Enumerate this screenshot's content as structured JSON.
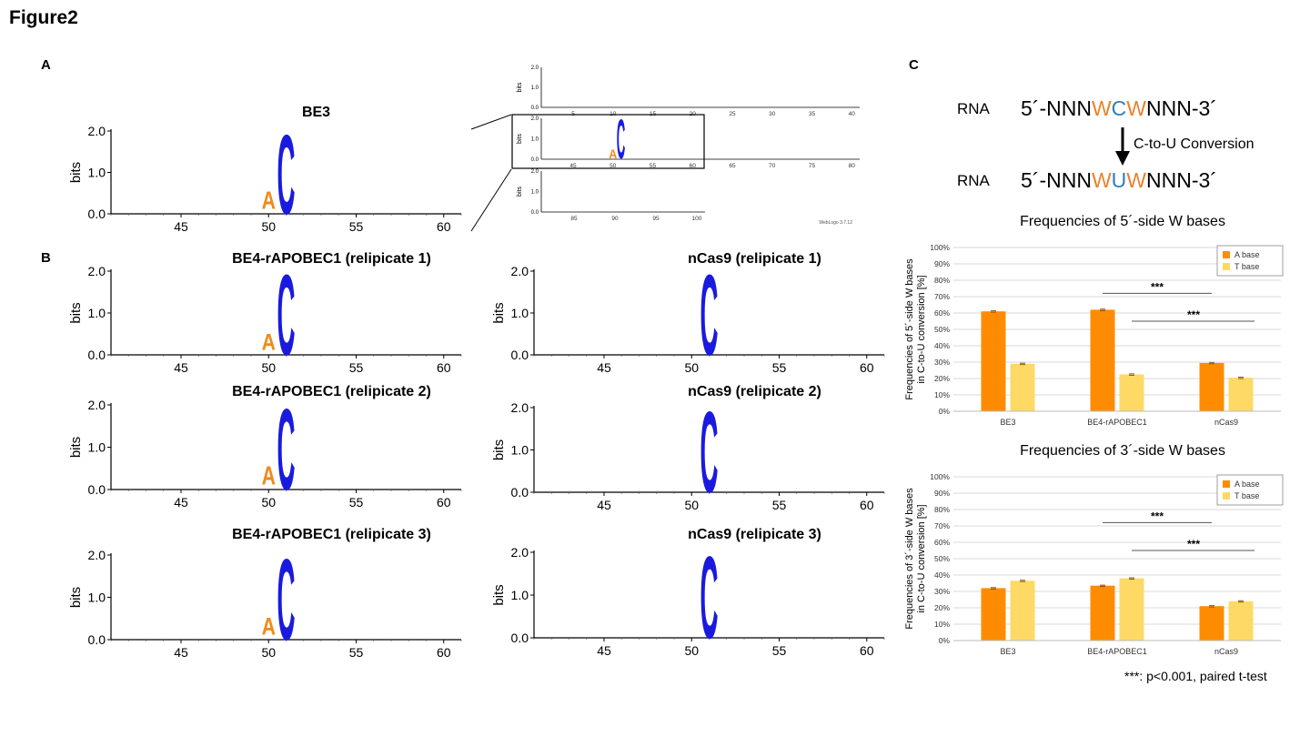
{
  "figure": {
    "title": "Figure2",
    "labels": {
      "a": "A",
      "b": "B",
      "c": "C"
    }
  },
  "colors": {
    "c_base": "#1a1adf",
    "a_base": "#f08a1c",
    "bar_a": "#ff8c00",
    "bar_t": "#ffd966",
    "w_highlight": "#e8822a",
    "c_highlight": "#2a7fc1"
  },
  "chart_data": [
    {
      "id": "logo_be3",
      "type": "sequence-logo",
      "title": "BE3",
      "ylabel": "bits",
      "ylim": [
        0,
        2.0
      ],
      "yticks": [
        "0.0",
        "1.0",
        "2.0"
      ],
      "xticks": [
        45,
        50,
        55,
        60
      ],
      "xlim": [
        41,
        61
      ],
      "letters": [
        {
          "pos": 51,
          "base": "C",
          "height": 2.0
        },
        {
          "pos": 50,
          "base": "A",
          "height": 0.45
        }
      ]
    },
    {
      "id": "logo_be4_r1",
      "type": "sequence-logo",
      "title": "BE4-rAPOBEC1 (relipicate 1)",
      "ylabel": "bits",
      "ylim": [
        0,
        2.0
      ],
      "yticks": [
        "0.0",
        "1.0",
        "2.0"
      ],
      "xticks": [
        45,
        50,
        55,
        60
      ],
      "xlim": [
        41,
        61
      ],
      "letters": [
        {
          "pos": 51,
          "base": "C",
          "height": 2.0
        },
        {
          "pos": 50,
          "base": "A",
          "height": 0.4
        }
      ]
    },
    {
      "id": "logo_be4_r2",
      "type": "sequence-logo",
      "title": "BE4-rAPOBEC1 (relipicate 2)",
      "ylabel": "bits",
      "ylim": [
        0,
        2.0
      ],
      "yticks": [
        "0.0",
        "1.0",
        "2.0"
      ],
      "xticks": [
        45,
        50,
        55,
        60
      ],
      "xlim": [
        41,
        61
      ],
      "letters": [
        {
          "pos": 51,
          "base": "C",
          "height": 2.0
        },
        {
          "pos": 50,
          "base": "A",
          "height": 0.45
        }
      ]
    },
    {
      "id": "logo_be4_r3",
      "type": "sequence-logo",
      "title": "BE4-rAPOBEC1 (relipicate 3)",
      "ylabel": "bits",
      "ylim": [
        0,
        2.0
      ],
      "yticks": [
        "0.0",
        "1.0",
        "2.0"
      ],
      "xticks": [
        45,
        50,
        55,
        60
      ],
      "xlim": [
        41,
        61
      ],
      "letters": [
        {
          "pos": 51,
          "base": "C",
          "height": 2.0
        },
        {
          "pos": 50,
          "base": "A",
          "height": 0.42
        }
      ]
    },
    {
      "id": "logo_ncas9_r1",
      "type": "sequence-logo",
      "title": "nCas9 (relipicate 1)",
      "ylabel": "bits",
      "ylim": [
        0,
        2.0
      ],
      "yticks": [
        "0.0",
        "1.0",
        "2.0"
      ],
      "xticks": [
        45,
        50,
        55,
        60
      ],
      "xlim": [
        41,
        61
      ],
      "letters": [
        {
          "pos": 51,
          "base": "C",
          "height": 2.0
        }
      ]
    },
    {
      "id": "logo_ncas9_r2",
      "type": "sequence-logo",
      "title": "nCas9 (relipicate 2)",
      "ylabel": "bits",
      "ylim": [
        0,
        2.0
      ],
      "yticks": [
        "0.0",
        "1.0",
        "2.0"
      ],
      "xticks": [
        45,
        50,
        55,
        60
      ],
      "xlim": [
        41,
        61
      ],
      "letters": [
        {
          "pos": 51,
          "base": "C",
          "height": 2.0
        }
      ]
    },
    {
      "id": "logo_ncas9_r3",
      "type": "sequence-logo",
      "title": "nCas9 (relipicate 3)",
      "ylabel": "bits",
      "ylim": [
        0,
        2.0
      ],
      "yticks": [
        "0.0",
        "1.0",
        "2.0"
      ],
      "xticks": [
        45,
        50,
        55,
        60
      ],
      "xlim": [
        41,
        61
      ],
      "letters": [
        {
          "pos": 51,
          "base": "C",
          "height": 2.0
        }
      ]
    },
    {
      "id": "inset_full",
      "type": "sequence-logo-inset",
      "ylabel": "bits",
      "yticks": [
        "0.0",
        "1.0",
        "2.0"
      ],
      "rows": [
        {
          "xticks": [
            5,
            10,
            15,
            20,
            25,
            30,
            35,
            40
          ],
          "xlim": [
            1,
            41
          ]
        },
        {
          "xticks": [
            45,
            50,
            55,
            60,
            65,
            70,
            75,
            80
          ],
          "xlim": [
            41,
            81
          ],
          "letters": [
            {
              "pos": 51,
              "base": "C",
              "height": 2.0
            },
            {
              "pos": 50,
              "base": "A",
              "height": 0.45
            }
          ]
        },
        {
          "xticks": [
            85,
            90,
            95,
            100
          ],
          "xlim": [
            81,
            101
          ]
        }
      ],
      "footer": "WebLogo 3.7.12"
    },
    {
      "id": "bar_5prime",
      "type": "bar",
      "title": "Frequencies of 5´-side W bases",
      "ylabel": "Frequencies of 5´-side W bases in C-to-U conversion [%]",
      "ylim": [
        0,
        100
      ],
      "yticks": [
        "0%",
        "10%",
        "20%",
        "30%",
        "40%",
        "50%",
        "60%",
        "70%",
        "80%",
        "90%",
        "100%"
      ],
      "categories": [
        "BE3",
        "BE4-rAPOBEC1",
        "nCas9"
      ],
      "series": [
        {
          "name": "A base",
          "values": [
            61,
            62,
            29.5
          ]
        },
        {
          "name": "T base",
          "values": [
            29,
            22.5,
            20.5
          ]
        }
      ],
      "legend": "top-right",
      "significance": [
        "***",
        "***"
      ]
    },
    {
      "id": "bar_3prime",
      "type": "bar",
      "title": "Frequencies of 3´-side W bases",
      "ylabel": "Frequencies of 3´-side W bases in C-to-U conversion [%]",
      "ylim": [
        0,
        100
      ],
      "yticks": [
        "0%",
        "10%",
        "20%",
        "30%",
        "40%",
        "50%",
        "60%",
        "70%",
        "80%",
        "90%",
        "100%"
      ],
      "categories": [
        "BE3",
        "BE4-rAPOBEC1",
        "nCas9"
      ],
      "series": [
        {
          "name": "A base",
          "values": [
            32,
            33.5,
            21
          ]
        },
        {
          "name": "T base",
          "values": [
            36.5,
            38,
            24
          ]
        }
      ],
      "legend": "top-right",
      "significance": [
        "***",
        "***"
      ]
    }
  ],
  "panel_c": {
    "rna_tag": "RNA",
    "top_seq": {
      "pre": "5´-NNN",
      "w1": "W",
      "mid": "C",
      "w2": "W",
      "post": "NNN-3´"
    },
    "conversion_label": "C-to-U Conversion",
    "bottom_seq": {
      "pre": "5´-NNN",
      "w1": "W",
      "mid": "U",
      "w2": "W",
      "post": "NNN-3´"
    },
    "footnote": "***: p<0.001, paired t-test"
  }
}
